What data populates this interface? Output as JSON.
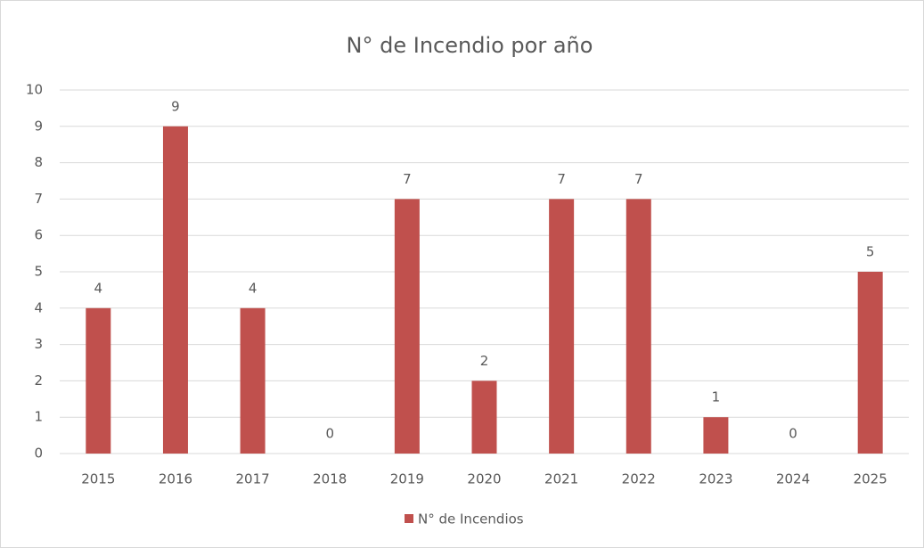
{
  "chart_data": {
    "type": "bar",
    "title": "N° de Incendio por año",
    "categories": [
      "2015",
      "2016",
      "2017",
      "2018",
      "2019",
      "2020",
      "2021",
      "2022",
      "2023",
      "2024",
      "2025"
    ],
    "series": [
      {
        "name": "N° de Incendios",
        "color": "#c0504d",
        "values": [
          4,
          9,
          4,
          0,
          7,
          2,
          7,
          7,
          1,
          0,
          5
        ]
      }
    ],
    "ylim": [
      0,
      10
    ],
    "yticks": [
      0,
      1,
      2,
      3,
      4,
      5,
      6,
      7,
      8,
      9,
      10
    ],
    "grid": true,
    "legend": "bottom"
  }
}
